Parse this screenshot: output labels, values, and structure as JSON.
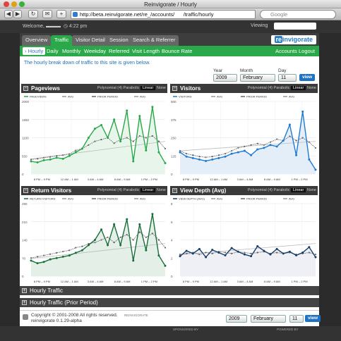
{
  "window": {
    "title": "Reinvigorate / Hourly"
  },
  "browser": {
    "url": "http://beta.reinvigorate.net/re_/accounts/      /traffic/hourly",
    "search_placeholder": "Google"
  },
  "header": {
    "welcome": "Welcome,",
    "time": "4:22 pm",
    "viewing_label": "Viewing"
  },
  "tabs": [
    {
      "label": "Overview"
    },
    {
      "label": "Traffic"
    },
    {
      "label": "Visitor Detail"
    },
    {
      "label": "Session"
    },
    {
      "label": "Search & Referrer"
    }
  ],
  "logo": {
    "mark": "re",
    "text": "invigorate"
  },
  "subnav": {
    "items": [
      "› Hourly",
      "Daily",
      "Monthly",
      "Weekday",
      "Referred",
      "Visit Length",
      "Bounce Rate"
    ],
    "accounts": "Accounts",
    "logout": "Logout"
  },
  "description": "The hourly break down of traffic to this site is given below.",
  "date_controls": {
    "year_label": "Year",
    "month_label": "Month",
    "day_label": "Day",
    "year": "2009",
    "month": "February",
    "day": "11",
    "view": "view"
  },
  "chart_options": {
    "polynomial": "Polynomial (4)",
    "parabolic": "Parabolic",
    "linear": "Linear",
    "none": "None"
  },
  "x_ticks": [
    "8 PM – 9 PM",
    "12 AM – 1 AM",
    "3 AM – 4 AM",
    "8 AM – 9 AM",
    "1 PM – 2 PM"
  ],
  "panels": {
    "pageviews": {
      "title": "Pageviews",
      "legend_series": "PAGEVIEWS",
      "legend_avg": "AVG",
      "legend_prior": "PRIOR PERIOD",
      "legend_prior_avg": "AVG",
      "y_ticks": [
        "2000",
        "1550",
        "1100",
        "550",
        "0"
      ]
    },
    "visitors": {
      "title": "Visitors",
      "legend_series": "VISITORS",
      "legend_avg": "AVG",
      "legend_prior": "PRIOR PERIOD",
      "legend_prior_avg": "AVG",
      "y_ticks": [
        "500",
        "375",
        "250",
        "125",
        "0"
      ]
    },
    "return_visitors": {
      "title": "Return Visitors",
      "legend_series": "RETURN VISITORS",
      "legend_avg": "AVG",
      "legend_prior": "PRIOR PERIOD",
      "legend_prior_avg": "AVG",
      "y_ticks": [
        "280",
        "210",
        "140",
        "70",
        "0"
      ]
    },
    "view_depth": {
      "title": "View Depth (Avg)",
      "legend_series": "VIEW DEPTH (AVG)",
      "legend_avg": "AVG",
      "legend_prior": "PRIOR PERIOD",
      "legend_prior_avg": "AVG",
      "y_ticks": [
        "8",
        "6",
        "4",
        "2",
        "0"
      ]
    }
  },
  "collapsed": [
    "Hourly Traffic",
    "Hourly Traffic (Prior Period)"
  ],
  "footer": {
    "copyright": "Copyright © 2001-2008 All rights reserved.",
    "version": "reinvigorate 0.1.29-alpha",
    "brand": "REINVIGORATE"
  },
  "bottom": {
    "sponsored": "SPONSORED BY",
    "powered": "POWERED BY"
  },
  "colors": {
    "green": "#2ba84a",
    "blue": "#1e7ad1",
    "dark_green": "#1a6e3a",
    "gray": "#666666"
  },
  "chart_data": [
    {
      "type": "line",
      "title": "Pageviews",
      "series": [
        {
          "name": "PAGEVIEWS",
          "color": "#2ba84a",
          "values": [
            350,
            320,
            380,
            400,
            450,
            420,
            500,
            600,
            700,
            1000,
            1250,
            1350,
            1000,
            1500,
            900,
            1750,
            350,
            1600,
            650,
            1850,
            600,
            300
          ]
        },
        {
          "name": "PRIOR PERIOD",
          "color": "#666666",
          "values": [
            400,
            420,
            450,
            470,
            500,
            520,
            550,
            650,
            700,
            800,
            900,
            950,
            1000,
            850,
            950,
            1000,
            900,
            1050,
            1000,
            1050,
            900,
            700
          ]
        }
      ],
      "ylim": [
        0,
        2000
      ]
    },
    {
      "type": "line",
      "title": "Visitors",
      "series": [
        {
          "name": "VISITORS",
          "color": "#1e7ad1",
          "values": [
            150,
            120,
            110,
            100,
            90,
            100,
            110,
            120,
            140,
            150,
            160,
            130,
            170,
            180,
            200,
            190,
            230,
            340,
            130,
            430,
            100,
            30
          ]
        },
        {
          "name": "PRIOR PERIOD",
          "color": "#666666",
          "values": [
            160,
            140,
            130,
            120,
            115,
            120,
            130,
            140,
            160,
            180,
            190,
            200,
            210,
            200,
            220,
            240,
            230,
            260,
            230,
            250,
            220,
            180
          ]
        }
      ],
      "ylim": [
        0,
        500
      ]
    },
    {
      "type": "line",
      "title": "Return Visitors",
      "series": [
        {
          "name": "RETURN VISITORS",
          "color": "#1a6e3a",
          "values": [
            60,
            50,
            55,
            65,
            70,
            75,
            80,
            90,
            100,
            120,
            140,
            180,
            120,
            200,
            120,
            220,
            60,
            200,
            100,
            240,
            80,
            40
          ]
        },
        {
          "name": "PRIOR PERIOD",
          "color": "#666666",
          "values": [
            70,
            75,
            80,
            85,
            90,
            95,
            100,
            110,
            115,
            125,
            130,
            140,
            150,
            130,
            150,
            160,
            140,
            170,
            150,
            165,
            140,
            110
          ]
        }
      ],
      "ylim": [
        0,
        280
      ]
    },
    {
      "type": "line",
      "title": "View Depth (Avg)",
      "series": [
        {
          "name": "VIEW DEPTH (AVG)",
          "color": "#1a3e6a",
          "values": [
            2.2,
            2.8,
            2.5,
            3.0,
            2.1,
            2.9,
            2.6,
            2.3,
            3.1,
            2.7,
            2.4,
            2.2,
            3.3,
            2.8,
            2.4,
            3.0,
            2.5,
            2.7,
            2.3,
            2.6,
            3.2,
            2.1
          ]
        },
        {
          "name": "PRIOR PERIOD",
          "color": "#666666",
          "values": [
            2.4,
            2.5,
            2.6,
            2.4,
            2.6,
            2.5,
            2.7,
            2.6,
            2.5,
            2.7,
            2.6,
            2.5,
            2.6,
            2.7,
            2.5,
            2.6,
            2.5,
            2.6,
            2.4,
            2.5,
            2.6,
            2.4
          ]
        }
      ],
      "ylim": [
        0,
        8
      ]
    }
  ]
}
